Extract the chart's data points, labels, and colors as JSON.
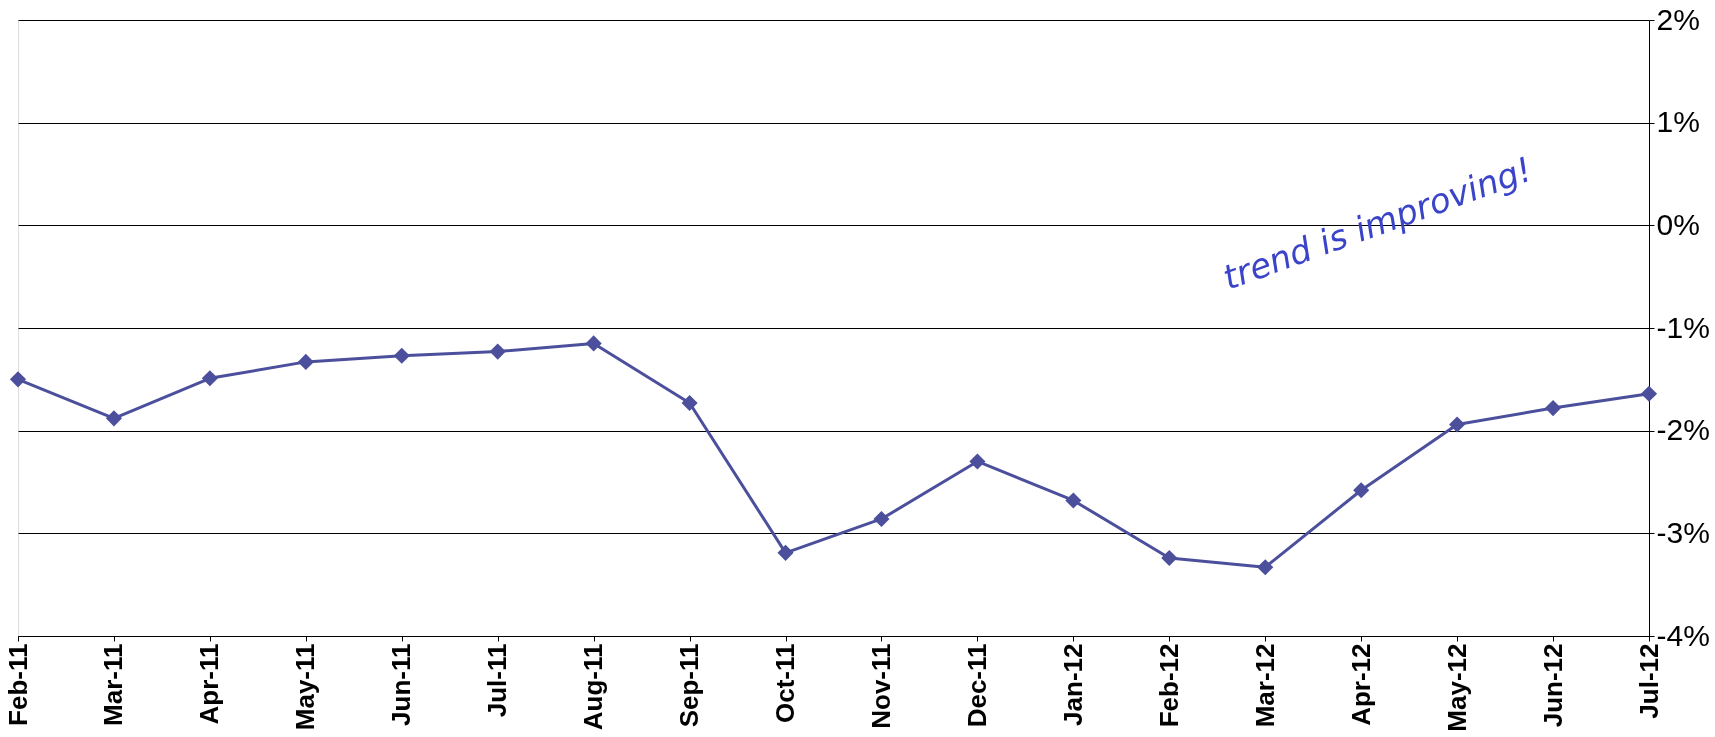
{
  "chart_data": {
    "type": "line",
    "categories": [
      "Feb-11",
      "Mar-11",
      "Apr-11",
      "May-11",
      "Jun-11",
      "Jul-11",
      "Aug-11",
      "Sep-11",
      "Oct-11",
      "Nov-11",
      "Dec-11",
      "Jan-12",
      "Feb-12",
      "Mar-12",
      "Apr-12",
      "May-12",
      "Jun-12",
      "Jul-12"
    ],
    "series": [
      {
        "color": "#4b4f9c",
        "values": [
          -1.5,
          -1.88,
          -1.49,
          -1.33,
          -1.27,
          -1.23,
          -1.15,
          -1.73,
          -3.19,
          -2.86,
          -2.3,
          -2.68,
          -3.24,
          -3.33,
          -2.58,
          -1.94,
          -1.78,
          -1.64
        ]
      }
    ],
    "ylim": [
      -4,
      2
    ],
    "yticks": [
      {
        "value": -4,
        "label": "-4%"
      },
      {
        "value": -3,
        "label": "-3%"
      },
      {
        "value": -2,
        "label": "-2%"
      },
      {
        "value": -1,
        "label": "-1%"
      },
      {
        "value": 0,
        "label": "0%"
      },
      {
        "value": 1,
        "label": "1%"
      },
      {
        "value": 2,
        "label": "2%"
      }
    ],
    "grid": "y",
    "marker": "diamond",
    "line_style": "solid",
    "annotations": [
      "trend is improving!"
    ]
  }
}
